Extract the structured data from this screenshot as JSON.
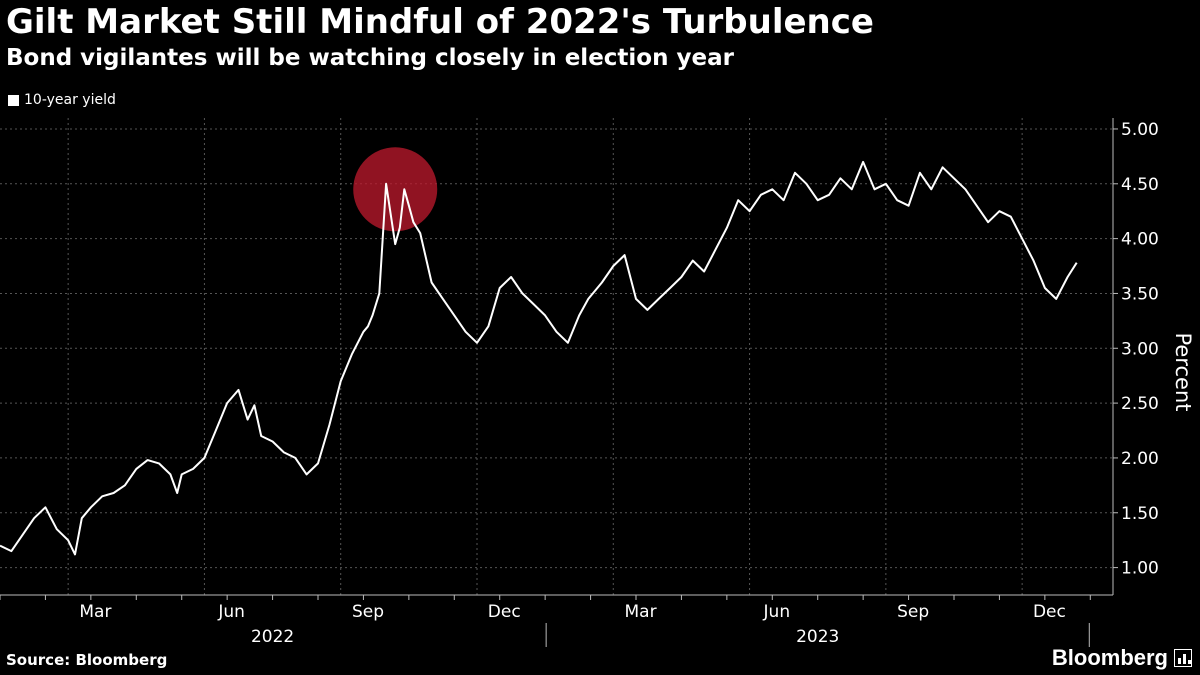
{
  "header": {
    "title": "Gilt Market Still Mindful of 2022's Turbulence",
    "subtitle": "Bond vigilantes will be watching closely in election year"
  },
  "legend": {
    "label": "10-year yield"
  },
  "footer": {
    "source": "Source: Bloomberg",
    "brand": "Bloomberg"
  },
  "colors": {
    "background": "#000000",
    "line": "#ffffff",
    "grid": "#555555",
    "highlight": "#c0192e"
  },
  "chart_data": {
    "type": "line",
    "title": "Gilt Market Still Mindful of 2022's Turbulence",
    "ylabel": "Percent",
    "xlabel": "",
    "ylim": [
      0.75,
      5.1
    ],
    "yticks": [
      1.0,
      1.5,
      2.0,
      2.5,
      3.0,
      3.5,
      4.0,
      4.5,
      5.0
    ],
    "ytick_labels": [
      "1.00",
      "1.50",
      "2.00",
      "2.50",
      "3.00",
      "3.50",
      "4.00",
      "4.50",
      "5.00"
    ],
    "xlim_months": [
      0,
      24.5
    ],
    "xticks": [
      {
        "month": 2,
        "label": "Mar"
      },
      {
        "month": 5,
        "label": "Jun"
      },
      {
        "month": 8,
        "label": "Sep"
      },
      {
        "month": 11,
        "label": "Dec"
      },
      {
        "month": 14,
        "label": "Mar"
      },
      {
        "month": 17,
        "label": "Jun"
      },
      {
        "month": 20,
        "label": "Sep"
      },
      {
        "month": 23,
        "label": "Dec"
      }
    ],
    "year_labels": [
      {
        "label": "2022",
        "center_month": 6
      },
      {
        "label": "2023",
        "center_month": 18
      }
    ],
    "legend_position": "top-left",
    "annotation": {
      "type": "circle",
      "month": 8.7,
      "value": 4.45,
      "note": "2022 peak highlight"
    },
    "series": [
      {
        "name": "10-year yield",
        "x_months": [
          0.0,
          0.25,
          0.5,
          0.75,
          1.0,
          1.25,
          1.5,
          1.65,
          1.8,
          2.0,
          2.25,
          2.5,
          2.75,
          3.0,
          3.25,
          3.5,
          3.75,
          3.9,
          4.0,
          4.25,
          4.5,
          4.75,
          5.0,
          5.25,
          5.45,
          5.6,
          5.75,
          6.0,
          6.25,
          6.5,
          6.75,
          7.0,
          7.25,
          7.5,
          7.75,
          8.0,
          8.1,
          8.2,
          8.35,
          8.5,
          8.7,
          8.8,
          8.9,
          9.0,
          9.1,
          9.25,
          9.5,
          9.75,
          10.0,
          10.25,
          10.5,
          10.75,
          11.0,
          11.25,
          11.5,
          11.75,
          12.0,
          12.25,
          12.5,
          12.75,
          12.95,
          13.25,
          13.5,
          13.75,
          14.0,
          14.25,
          14.5,
          14.75,
          15.0,
          15.25,
          15.5,
          15.75,
          16.0,
          16.25,
          16.5,
          16.75,
          17.0,
          17.25,
          17.5,
          17.75,
          18.0,
          18.25,
          18.5,
          18.75,
          19.0,
          19.25,
          19.5,
          19.75,
          20.0,
          20.25,
          20.5,
          20.75,
          21.0,
          21.25,
          21.5,
          21.75,
          22.0,
          22.25,
          22.5,
          22.75,
          23.0,
          23.25,
          23.5,
          23.7
        ],
        "values": [
          1.2,
          1.15,
          1.3,
          1.45,
          1.55,
          1.35,
          1.25,
          1.12,
          1.45,
          1.55,
          1.65,
          1.68,
          1.75,
          1.9,
          1.98,
          1.95,
          1.85,
          1.68,
          1.85,
          1.9,
          2.0,
          2.25,
          2.5,
          2.62,
          2.35,
          2.48,
          2.2,
          2.15,
          2.05,
          2.0,
          1.85,
          1.95,
          2.3,
          2.7,
          2.95,
          3.15,
          3.2,
          3.3,
          3.5,
          4.5,
          3.95,
          4.1,
          4.45,
          4.3,
          4.15,
          4.05,
          3.6,
          3.45,
          3.3,
          3.15,
          3.05,
          3.2,
          3.55,
          3.65,
          3.5,
          3.4,
          3.3,
          3.15,
          3.05,
          3.3,
          3.45,
          3.6,
          3.75,
          3.85,
          3.45,
          3.35,
          3.45,
          3.55,
          3.65,
          3.8,
          3.7,
          3.9,
          4.1,
          4.35,
          4.25,
          4.4,
          4.45,
          4.35,
          4.6,
          4.5,
          4.35,
          4.4,
          4.55,
          4.45,
          4.7,
          4.45,
          4.5,
          4.35,
          4.3,
          4.6,
          4.45,
          4.65,
          4.55,
          4.45,
          4.3,
          4.15,
          4.25,
          4.2,
          4.0,
          3.8,
          3.55,
          3.45,
          3.65,
          3.78
        ]
      }
    ]
  }
}
